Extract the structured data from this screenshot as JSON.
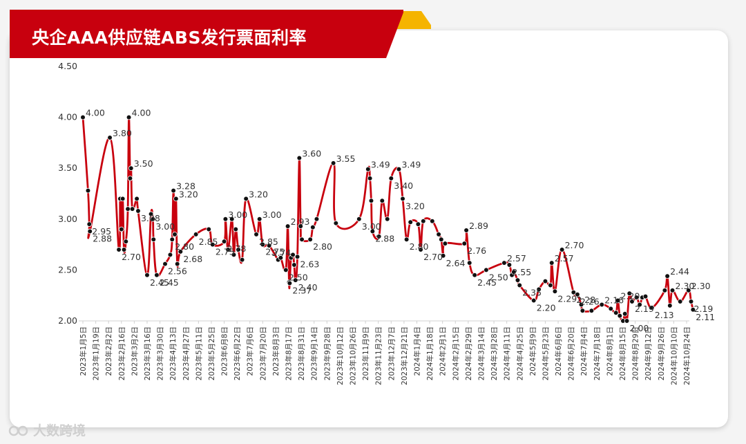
{
  "title": "央企AAA供应链ABS发行票面利率",
  "watermark": "大数跨境",
  "colors": {
    "banner": "#c8000e",
    "banner_accent": "#f5b400",
    "line": "#c8000e",
    "marker": "#111111"
  },
  "chart_data": {
    "type": "line",
    "title": "央企AAA供应链ABS发行票面利率",
    "ylim": [
      2.0,
      4.5
    ],
    "yticks": [
      "2.00",
      "2.50",
      "3.00",
      "3.50",
      "4.00",
      "4.50"
    ],
    "grid": false,
    "xlabels": [
      "2023年1月5日",
      "2023年1月19日",
      "2023年2月2日",
      "2023年2月16日",
      "2023年3月2日",
      "2023年3月16日",
      "2023年3月30日",
      "2023年4月13日",
      "2023年4月27日",
      "2023年5月11日",
      "2023年5月25日",
      "2023年6月8日",
      "2023年6月22日",
      "2023年7月6日",
      "2023年7月20日",
      "2023年8月3日",
      "2023年8月17日",
      "2023年8月31日",
      "2023年9月14日",
      "2023年9月28日",
      "2023年10月12日",
      "2023年10月26日",
      "2023年11月9日",
      "2023年11月23日",
      "2023年12月7日",
      "2023年12月21日",
      "2024年1月4日",
      "2024年1月18日",
      "2024年2月1日",
      "2024年2月15日",
      "2024年2月29日",
      "2024年3月14日",
      "2024年3月28日",
      "2024年4月11日",
      "2024年4月25日",
      "2024年5月9日",
      "2024年5月23日",
      "2024年6月6日",
      "2024年6月20日",
      "2024年7月4日",
      "2024年7月18日",
      "2024年8月1日",
      "2024年8月15日",
      "2024年8月29日",
      "2024年9月12日",
      "2024年9月26日",
      "2024年10月10日",
      "2024年10月24日"
    ],
    "points": [
      {
        "x": 0.0,
        "y": 4.0,
        "label": "4.00"
      },
      {
        "x": 0.4,
        "y": 3.28
      },
      {
        "x": 0.5,
        "y": 2.95,
        "label": "2.95"
      },
      {
        "x": 0.55,
        "y": 2.88,
        "label": "2.88"
      },
      {
        "x": 2.1,
        "y": 3.8,
        "label": "3.80"
      },
      {
        "x": 2.8,
        "y": 2.7,
        "label": "2.70"
      },
      {
        "x": 2.9,
        "y": 3.2
      },
      {
        "x": 3.0,
        "y": 2.9
      },
      {
        "x": 3.1,
        "y": 3.2
      },
      {
        "x": 3.2,
        "y": 2.7
      },
      {
        "x": 3.35,
        "y": 2.78
      },
      {
        "x": 3.5,
        "y": 3.1
      },
      {
        "x": 3.58,
        "y": 4.0,
        "label": "4.00"
      },
      {
        "x": 3.68,
        "y": 3.4
      },
      {
        "x": 3.75,
        "y": 3.5,
        "label": "3.50"
      },
      {
        "x": 3.85,
        "y": 3.1
      },
      {
        "x": 4.2,
        "y": 3.2
      },
      {
        "x": 4.3,
        "y": 3.08,
        "label": "3.08"
      },
      {
        "x": 5.0,
        "y": 2.45,
        "label": "2.45"
      },
      {
        "x": 5.3,
        "y": 3.05
      },
      {
        "x": 5.45,
        "y": 3.0,
        "label": "3.00"
      },
      {
        "x": 5.5,
        "y": 2.8
      },
      {
        "x": 5.75,
        "y": 2.45,
        "label": "2.45"
      },
      {
        "x": 6.4,
        "y": 2.56,
        "label": "2.56"
      },
      {
        "x": 6.8,
        "y": 2.65
      },
      {
        "x": 6.95,
        "y": 2.8,
        "label": "2.80"
      },
      {
        "x": 7.05,
        "y": 3.28,
        "label": "3.28"
      },
      {
        "x": 7.15,
        "y": 2.85
      },
      {
        "x": 7.25,
        "y": 3.2,
        "label": "3.20"
      },
      {
        "x": 7.35,
        "y": 2.56
      },
      {
        "x": 7.6,
        "y": 2.68,
        "label": "2.68"
      },
      {
        "x": 8.8,
        "y": 2.85,
        "label": "2.85"
      },
      {
        "x": 9.8,
        "y": 2.9
      },
      {
        "x": 10.1,
        "y": 2.75,
        "label": "2.75"
      },
      {
        "x": 11.0,
        "y": 2.78,
        "label": "2.78"
      },
      {
        "x": 11.1,
        "y": 3.0,
        "label": "3.00"
      },
      {
        "x": 11.3,
        "y": 2.7
      },
      {
        "x": 11.6,
        "y": 3.0
      },
      {
        "x": 11.75,
        "y": 2.65
      },
      {
        "x": 11.9,
        "y": 2.9
      },
      {
        "x": 12.1,
        "y": 2.7
      },
      {
        "x": 12.4,
        "y": 2.6
      },
      {
        "x": 12.7,
        "y": 3.2,
        "label": "3.20"
      },
      {
        "x": 13.5,
        "y": 2.85,
        "label": "2.85"
      },
      {
        "x": 13.75,
        "y": 3.0,
        "label": "3.00"
      },
      {
        "x": 14.0,
        "y": 2.75,
        "label": "2.75"
      },
      {
        "x": 14.5,
        "y": 2.74,
        "label": "2.74"
      },
      {
        "x": 15.2,
        "y": 2.6
      },
      {
        "x": 15.4,
        "y": 2.62
      },
      {
        "x": 15.8,
        "y": 2.5,
        "label": "2.50"
      },
      {
        "x": 15.95,
        "y": 2.93,
        "label": "2.93"
      },
      {
        "x": 16.05,
        "y": 2.38
      },
      {
        "x": 16.1,
        "y": 2.37,
        "label": "2.37"
      },
      {
        "x": 16.2,
        "y": 2.62
      },
      {
        "x": 16.35,
        "y": 2.65
      },
      {
        "x": 16.45,
        "y": 2.55
      },
      {
        "x": 16.55,
        "y": 2.4,
        "label": "2.40"
      },
      {
        "x": 16.7,
        "y": 2.63,
        "label": "2.63"
      },
      {
        "x": 16.85,
        "y": 3.6,
        "label": "3.60"
      },
      {
        "x": 16.95,
        "y": 2.93
      },
      {
        "x": 17.05,
        "y": 2.8
      },
      {
        "x": 17.7,
        "y": 2.8,
        "label": "2.80"
      },
      {
        "x": 17.9,
        "y": 2.92
      },
      {
        "x": 18.2,
        "y": 3.0
      },
      {
        "x": 19.5,
        "y": 3.55,
        "label": "3.55"
      },
      {
        "x": 19.7,
        "y": 2.96
      },
      {
        "x": 21.5,
        "y": 3.0,
        "label": "3.00"
      },
      {
        "x": 22.2,
        "y": 3.49,
        "label": "3.49"
      },
      {
        "x": 22.35,
        "y": 3.4
      },
      {
        "x": 22.45,
        "y": 3.18
      },
      {
        "x": 22.55,
        "y": 2.88,
        "label": "2.88"
      },
      {
        "x": 23.05,
        "y": 2.83
      },
      {
        "x": 23.3,
        "y": 3.18
      },
      {
        "x": 23.7,
        "y": 3.0
      },
      {
        "x": 24.0,
        "y": 3.4,
        "label": "3.40"
      },
      {
        "x": 24.6,
        "y": 3.49,
        "label": "3.49"
      },
      {
        "x": 24.9,
        "y": 3.2,
        "label": "3.20"
      },
      {
        "x": 25.2,
        "y": 2.8,
        "label": "2.80"
      },
      {
        "x": 25.5,
        "y": 2.97
      },
      {
        "x": 26.1,
        "y": 2.95
      },
      {
        "x": 26.3,
        "y": 2.7,
        "label": "2.70"
      },
      {
        "x": 26.5,
        "y": 2.98
      },
      {
        "x": 27.2,
        "y": 2.98
      },
      {
        "x": 27.7,
        "y": 2.85
      },
      {
        "x": 27.9,
        "y": 2.8
      },
      {
        "x": 28.05,
        "y": 2.64,
        "label": "2.64"
      },
      {
        "x": 28.2,
        "y": 2.76
      },
      {
        "x": 29.7,
        "y": 2.76,
        "label": "2.76"
      },
      {
        "x": 29.85,
        "y": 2.89,
        "label": "2.89"
      },
      {
        "x": 30.1,
        "y": 2.57
      },
      {
        "x": 30.5,
        "y": 2.45,
        "label": "2.45"
      },
      {
        "x": 31.4,
        "y": 2.5,
        "label": "2.50"
      },
      {
        "x": 32.8,
        "y": 2.57,
        "label": "2.57"
      },
      {
        "x": 33.2,
        "y": 2.55,
        "label": "2.55"
      },
      {
        "x": 33.4,
        "y": 2.45
      },
      {
        "x": 33.55,
        "y": 2.48
      },
      {
        "x": 33.85,
        "y": 2.4
      },
      {
        "x": 34.0,
        "y": 2.35,
        "label": "2.35"
      },
      {
        "x": 35.1,
        "y": 2.2,
        "label": "2.20"
      },
      {
        "x": 35.5,
        "y": 2.31
      },
      {
        "x": 36.0,
        "y": 2.39
      },
      {
        "x": 36.4,
        "y": 2.35
      },
      {
        "x": 36.5,
        "y": 2.57,
        "label": "2.57"
      },
      {
        "x": 36.75,
        "y": 2.29,
        "label": "2.29"
      },
      {
        "x": 37.3,
        "y": 2.7,
        "label": "2.70"
      },
      {
        "x": 38.2,
        "y": 2.28,
        "label": "2.28"
      },
      {
        "x": 38.5,
        "y": 2.26,
        "label": "2.26"
      },
      {
        "x": 38.8,
        "y": 2.16
      },
      {
        "x": 38.9,
        "y": 2.1
      },
      {
        "x": 39.6,
        "y": 2.1
      },
      {
        "x": 40.4,
        "y": 2.16,
        "label": "2.16"
      },
      {
        "x": 41.1,
        "y": 2.12
      },
      {
        "x": 41.5,
        "y": 2.08
      },
      {
        "x": 41.65,
        "y": 2.2,
        "label": "2.20"
      },
      {
        "x": 41.8,
        "y": 2.05
      },
      {
        "x": 42.05,
        "y": 2.0
      },
      {
        "x": 42.2,
        "y": 2.07
      },
      {
        "x": 42.35,
        "y": 2.0,
        "label": "2.00"
      },
      {
        "x": 42.55,
        "y": 2.27
      },
      {
        "x": 42.75,
        "y": 2.19,
        "label": "2.19"
      },
      {
        "x": 43.1,
        "y": 2.23
      },
      {
        "x": 43.35,
        "y": 2.16
      },
      {
        "x": 43.55,
        "y": 2.23
      },
      {
        "x": 43.8,
        "y": 2.24
      },
      {
        "x": 44.3,
        "y": 2.13,
        "label": "2.13"
      },
      {
        "x": 45.3,
        "y": 2.3
      },
      {
        "x": 45.5,
        "y": 2.44,
        "label": "2.44"
      },
      {
        "x": 45.7,
        "y": 2.15
      },
      {
        "x": 45.9,
        "y": 2.3,
        "label": "2.30"
      },
      {
        "x": 46.5,
        "y": 2.19
      },
      {
        "x": 47.15,
        "y": 2.3,
        "label": "2.30"
      },
      {
        "x": 47.35,
        "y": 2.19,
        "label": "2.19"
      },
      {
        "x": 47.5,
        "y": 2.11,
        "label": "2.11"
      }
    ]
  }
}
